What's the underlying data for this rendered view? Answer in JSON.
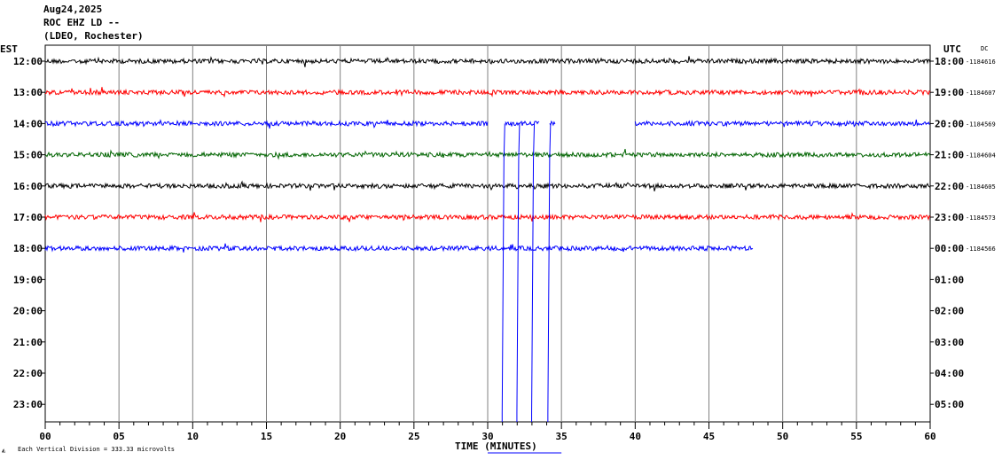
{
  "header": {
    "date": "Aug24,2025",
    "station": "ROC EHZ LD --",
    "location": "(LDEO, Rochester)"
  },
  "left_axis_label": "EST",
  "right_axis_label": "UTC",
  "dc_label": "DC",
  "x_axis_title": "TIME (MINUTES)",
  "footer_note": "Each Vertical Division =  333.33 microvolts",
  "footer_icon": "seismo-logo-icon",
  "colors": {
    "black": "#000000",
    "red": "#ff0000",
    "blue": "#0000ff",
    "green": "#006400",
    "grid": "#808080"
  },
  "chart_data": {
    "type": "line",
    "title": "ROC EHZ LD --",
    "xlabel": "TIME (MINUTES)",
    "ylabel": "EST",
    "xlim": [
      0,
      60
    ],
    "x_ticks": [
      "00",
      "05",
      "10",
      "15",
      "20",
      "25",
      "30",
      "35",
      "40",
      "45",
      "50",
      "55",
      "60"
    ],
    "rows": [
      {
        "est": "12:00",
        "utc": "18:00",
        "dc": "-1184616",
        "color": "black",
        "segments": [
          [
            0,
            60
          ]
        ]
      },
      {
        "est": "13:00",
        "utc": "19:00",
        "dc": "-1184607",
        "color": "red",
        "segments": [
          [
            0,
            60
          ]
        ]
      },
      {
        "est": "14:00",
        "utc": "20:00",
        "dc": "-1184569",
        "color": "blue",
        "segments": [
          [
            0,
            30
          ],
          [
            31.2,
            33.5
          ],
          [
            34.2,
            34.6
          ],
          [
            40,
            60
          ]
        ]
      },
      {
        "est": "15:00",
        "utc": "21:00",
        "dc": "-1184604",
        "color": "green",
        "segments": [
          [
            0,
            60
          ]
        ]
      },
      {
        "est": "16:00",
        "utc": "22:00",
        "dc": "-1184605",
        "color": "black",
        "segments": [
          [
            0,
            60
          ]
        ]
      },
      {
        "est": "17:00",
        "utc": "23:00",
        "dc": "-1184573",
        "color": "red",
        "segments": [
          [
            0,
            60
          ]
        ]
      },
      {
        "est": "18:00",
        "utc": "00:00",
        "dc": "-1184566",
        "color": "blue",
        "segments": [
          [
            0,
            48
          ]
        ]
      },
      {
        "est": "19:00",
        "utc": "01:00",
        "dc": "",
        "color": "",
        "segments": []
      },
      {
        "est": "20:00",
        "utc": "02:00",
        "dc": "",
        "color": "",
        "segments": []
      },
      {
        "est": "21:00",
        "utc": "03:00",
        "dc": "",
        "color": "",
        "segments": []
      },
      {
        "est": "22:00",
        "utc": "04:00",
        "dc": "",
        "color": "",
        "segments": []
      },
      {
        "est": "23:00",
        "utc": "05:00",
        "dc": "",
        "color": "",
        "segments": []
      }
    ],
    "spikes": {
      "row": "14:00",
      "color": "blue",
      "x_minutes": [
        31.1,
        32.1,
        33.1,
        34.2
      ],
      "extends_to": "bottom of plot"
    },
    "grid": true,
    "vertical_grid_every_minutes": 5
  }
}
